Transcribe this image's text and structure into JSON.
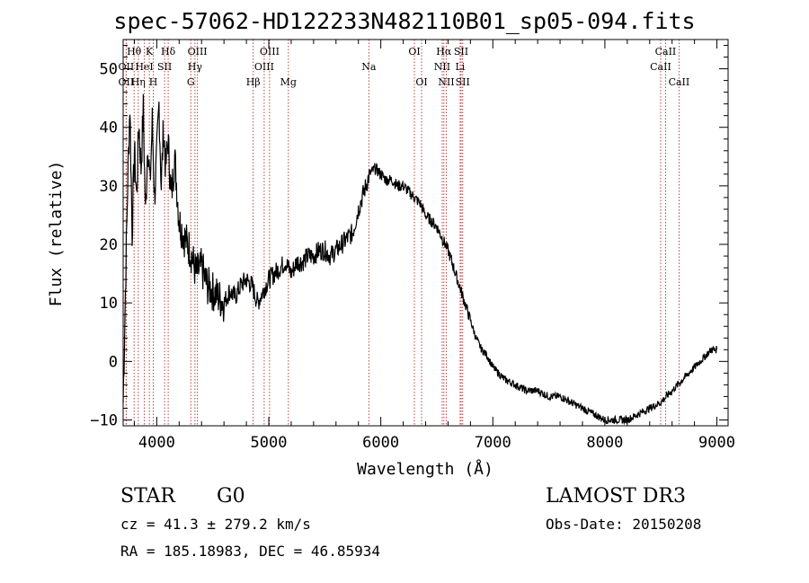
{
  "chart_data": {
    "type": "line",
    "title": "spec-57062-HD122233N482110B01_sp05-094.fits",
    "xlabel": "Wavelength (Å)",
    "ylabel": "Flux (relative)",
    "xlim": [
      3700,
      9100
    ],
    "ylim": [
      -11,
      55
    ],
    "x_ticks": [
      4000,
      5000,
      6000,
      7000,
      8000,
      9000
    ],
    "y_ticks": [
      -10,
      0,
      10,
      20,
      30,
      40,
      50
    ],
    "x_tick_labels": [
      "4000",
      "5000",
      "6000",
      "7000",
      "8000",
      "9000"
    ],
    "y_tick_labels": [
      "−10",
      "0",
      "10",
      "20",
      "30",
      "40",
      "50"
    ],
    "line_color": "#000000",
    "marker_color": "#b03030",
    "series": [
      {
        "name": "spectrum",
        "x": [
          3700,
          3720,
          3740,
          3760,
          3780,
          3800,
          3820,
          3840,
          3860,
          3880,
          3900,
          3920,
          3940,
          3960,
          3980,
          4000,
          4020,
          4040,
          4060,
          4080,
          4100,
          4130,
          4160,
          4200,
          4250,
          4300,
          4350,
          4400,
          4450,
          4500,
          4550,
          4600,
          4650,
          4700,
          4750,
          4800,
          4850,
          4900,
          4950,
          5000,
          5050,
          5100,
          5150,
          5200,
          5250,
          5300,
          5350,
          5400,
          5450,
          5500,
          5550,
          5600,
          5650,
          5700,
          5750,
          5800,
          5850,
          5900,
          5950,
          6000,
          6050,
          6100,
          6150,
          6200,
          6250,
          6300,
          6350,
          6400,
          6450,
          6500,
          6550,
          6600,
          6650,
          6700,
          6750,
          6800,
          6850,
          6900,
          6950,
          7000,
          7050,
          7100,
          7200,
          7300,
          7400,
          7500,
          7600,
          7700,
          7800,
          7900,
          8000,
          8100,
          8200,
          8300,
          8400,
          8500,
          8600,
          8700,
          8800,
          8850,
          8900,
          8950,
          9000
        ],
        "y": [
          -7,
          12,
          30,
          44,
          22,
          36,
          28,
          41,
          33,
          43,
          25,
          38,
          30,
          41,
          28,
          35,
          44,
          30,
          40,
          33,
          38,
          28,
          35,
          24,
          21,
          19,
          15,
          16,
          13,
          12,
          11,
          10,
          12,
          11,
          13,
          14,
          13,
          10,
          12,
          14,
          15,
          16,
          17,
          15,
          17,
          17,
          18,
          18,
          19,
          19,
          18,
          19,
          20,
          21,
          22,
          26,
          29,
          32,
          33,
          32,
          31,
          31,
          30,
          30,
          29,
          28,
          27,
          25,
          24,
          23,
          21,
          19,
          16,
          13,
          10,
          7,
          4,
          2,
          1,
          -1,
          -2,
          -3,
          -4,
          -5,
          -5,
          -6,
          -6,
          -7,
          -8,
          -9,
          -10,
          -10,
          -10,
          -9,
          -8,
          -7,
          -5,
          -3,
          -1,
          0,
          1,
          2,
          2
        ]
      }
    ],
    "markers": [
      {
        "label": "Hθ",
        "x": 3798,
        "row": 0
      },
      {
        "label": "OII",
        "x": 3727,
        "row": 1
      },
      {
        "label": "OII",
        "x": 3727,
        "row": 2
      },
      {
        "label": "Hη",
        "x": 3835,
        "row": 2
      },
      {
        "label": "K",
        "x": 3934,
        "row": 0
      },
      {
        "label": "HeI",
        "x": 3889,
        "row": 1
      },
      {
        "label": "H",
        "x": 3969,
        "row": 2
      },
      {
        "label": "Hδ",
        "x": 4102,
        "row": 0
      },
      {
        "label": "SII",
        "x": 4070,
        "row": 1
      },
      {
        "label": "OIII",
        "x": 4363,
        "row": 0
      },
      {
        "label": "Hγ",
        "x": 4341,
        "row": 1
      },
      {
        "label": "G",
        "x": 4304,
        "row": 2
      },
      {
        "label": "Hβ",
        "x": 4861,
        "row": 2
      },
      {
        "label": "OIII",
        "x": 5007,
        "row": 0
      },
      {
        "label": "OIII",
        "x": 4959,
        "row": 1
      },
      {
        "label": "Mg",
        "x": 5175,
        "row": 2
      },
      {
        "label": "Na",
        "x": 5893,
        "row": 1
      },
      {
        "label": "OI",
        "x": 6300,
        "row": 0
      },
      {
        "label": "OI",
        "x": 6364,
        "row": 2
      },
      {
        "label": "Hα",
        "x": 6563,
        "row": 0
      },
      {
        "label": "NII",
        "x": 6548,
        "row": 1
      },
      {
        "label": "NII",
        "x": 6584,
        "row": 2
      },
      {
        "label": "SII",
        "x": 6717,
        "row": 0
      },
      {
        "label": "Li",
        "x": 6708,
        "row": 1
      },
      {
        "label": "SII",
        "x": 6731,
        "row": 2
      },
      {
        "label": "CaII",
        "x": 8542,
        "row": 0
      },
      {
        "label": "CaII",
        "x": 8498,
        "row": 1
      },
      {
        "label": "CaII",
        "x": 8662,
        "row": 2
      }
    ]
  },
  "info": {
    "class_label": "STAR",
    "subclass": "G0",
    "survey": "LAMOST DR3",
    "cz": "cz = 41.3 ± 279.2 km/s",
    "obs_date": "Obs-Date: 20150208",
    "coords": "RA = 185.18983, DEC =  46.85934"
  }
}
